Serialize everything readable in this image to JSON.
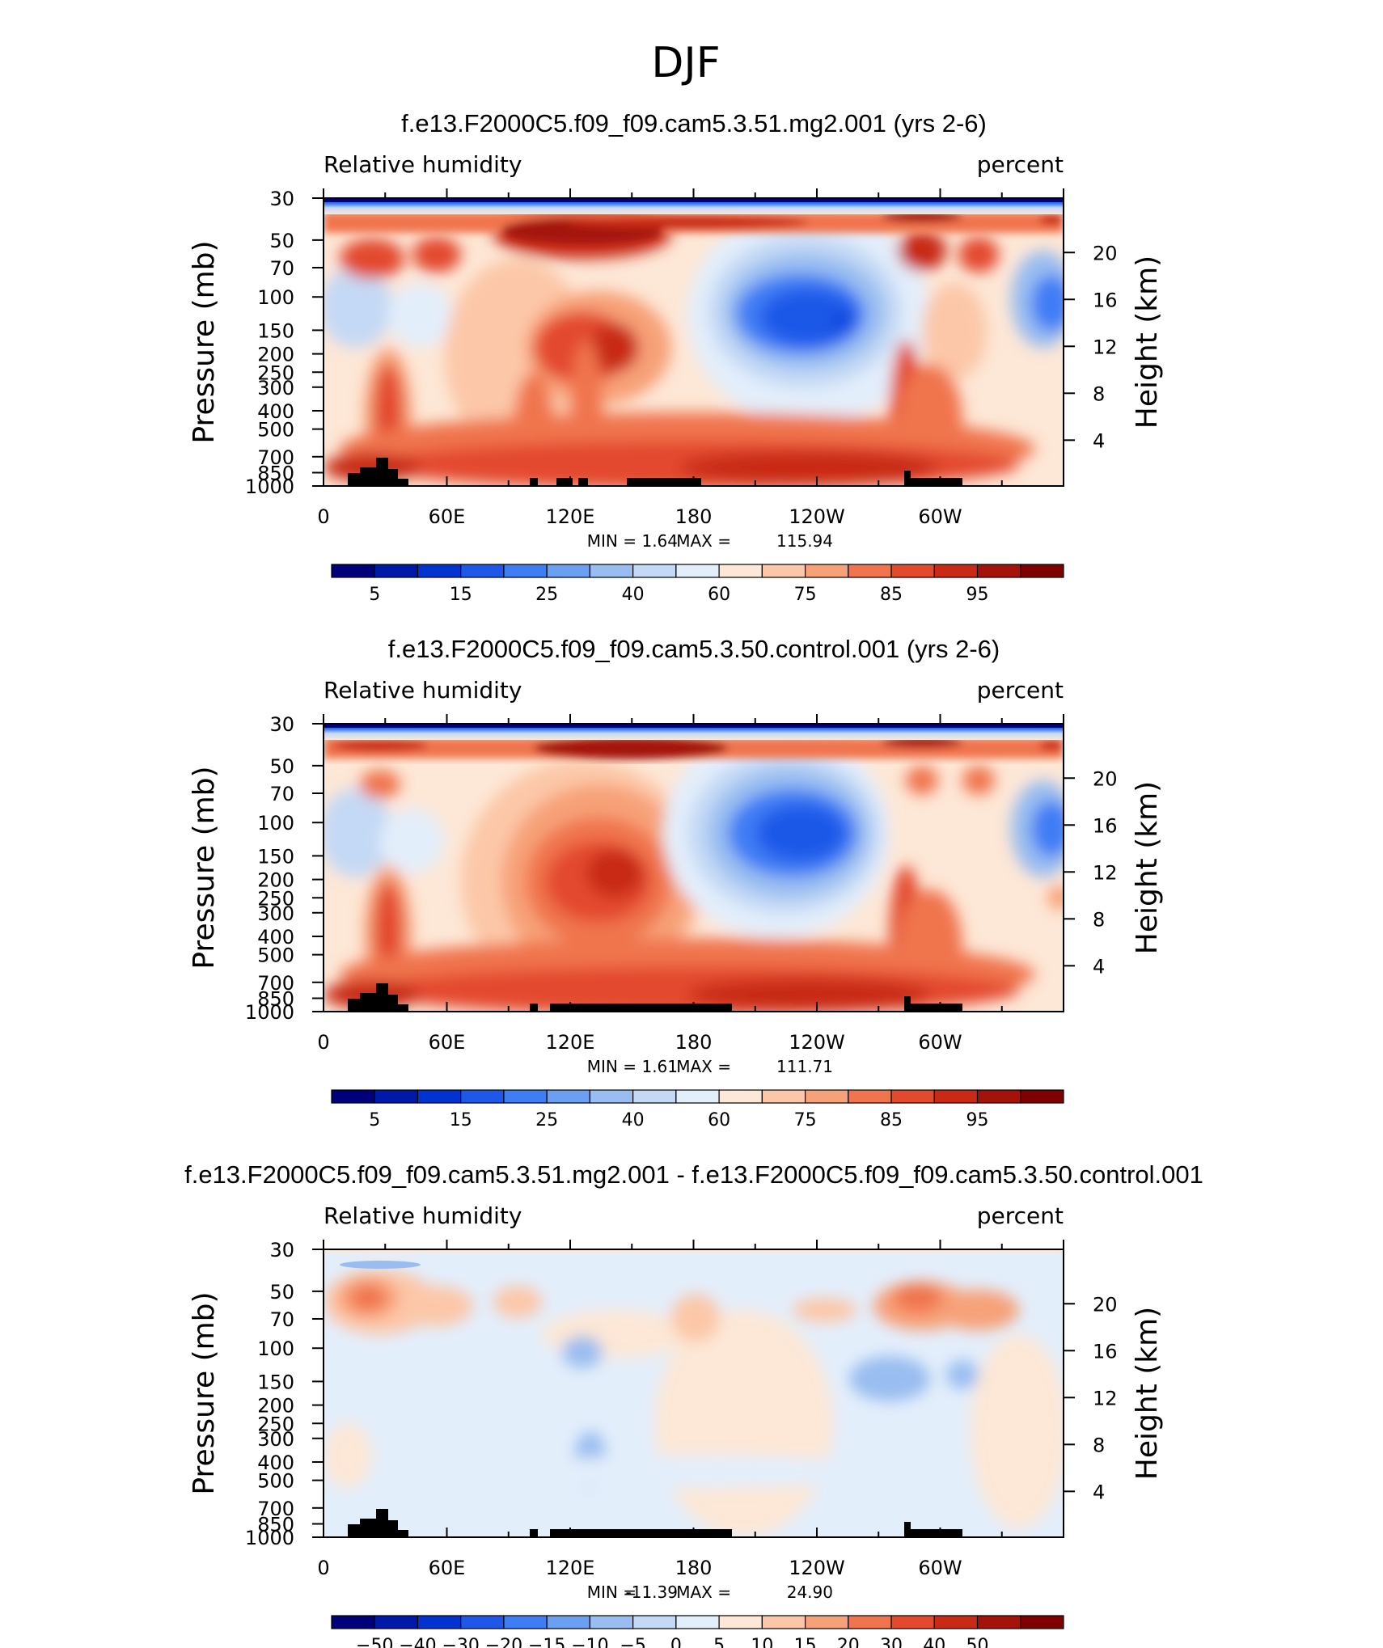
{
  "figure": {
    "title": "DJF"
  },
  "chart_data": [
    {
      "type": "heatmap",
      "title": "f.e13.F2000C5.f09_f09.cam5.3.51.mg2.001 (yrs 2-6)",
      "left_string": "Relative humidity",
      "right_string": "percent",
      "ylabel": "Pressure (mb)",
      "ylabel_right": "Height (km)",
      "x_ticks": [
        "0",
        "60E",
        "120E",
        "180",
        "120W",
        "60W"
      ],
      "y_ticks": [
        "30",
        "50",
        "70",
        "100",
        "150",
        "200",
        "250",
        "300",
        "400",
        "500",
        "700",
        "850",
        "1000"
      ],
      "right_ticks": [
        "20",
        "16",
        "12",
        "8",
        "4"
      ],
      "min_label": "MIN =",
      "min": "1.64",
      "max_label": "MAX =",
      "max": "115.94",
      "colorbar_labels": [
        "5",
        "15",
        "25",
        "40",
        "60",
        "75",
        "85",
        "95"
      ]
    },
    {
      "type": "heatmap",
      "title": "f.e13.F2000C5.f09_f09.cam5.3.50.control.001 (yrs 2-6)",
      "left_string": "Relative humidity",
      "right_string": "percent",
      "ylabel": "Pressure (mb)",
      "ylabel_right": "Height (km)",
      "x_ticks": [
        "0",
        "60E",
        "120E",
        "180",
        "120W",
        "60W"
      ],
      "y_ticks": [
        "30",
        "50",
        "70",
        "100",
        "150",
        "200",
        "250",
        "300",
        "400",
        "500",
        "700",
        "850",
        "1000"
      ],
      "right_ticks": [
        "20",
        "16",
        "12",
        "8",
        "4"
      ],
      "min_label": "MIN =",
      "min": "1.61",
      "max_label": "MAX =",
      "max": "111.71",
      "colorbar_labels": [
        "5",
        "15",
        "25",
        "40",
        "60",
        "75",
        "85",
        "95"
      ]
    },
    {
      "type": "heatmap",
      "title": "f.e13.F2000C5.f09_f09.cam5.3.51.mg2.001 - f.e13.F2000C5.f09_f09.cam5.3.50.control.001",
      "left_string": "Relative humidity",
      "right_string": "percent",
      "ylabel": "Pressure (mb)",
      "ylabel_right": "Height (km)",
      "x_ticks": [
        "0",
        "60E",
        "120E",
        "180",
        "120W",
        "60W"
      ],
      "y_ticks": [
        "30",
        "50",
        "70",
        "100",
        "150",
        "200",
        "250",
        "300",
        "400",
        "500",
        "700",
        "850",
        "1000"
      ],
      "right_ticks": [
        "20",
        "16",
        "12",
        "8",
        "4"
      ],
      "min_label": "MIN =",
      "min": "-11.39",
      "max_label": "MAX =",
      "max": "24.90",
      "colorbar_labels": [
        "−50",
        "−40",
        "−30",
        "−20",
        "−15",
        "−10",
        "−5",
        "0",
        "5",
        "10",
        "15",
        "20",
        "30",
        "40",
        "50"
      ]
    }
  ],
  "colors": {
    "scale": [
      "#00007a",
      "#0019a8",
      "#0033d0",
      "#1f58e8",
      "#3f7df5",
      "#6b9ff2",
      "#99bdf0",
      "#c4d9f5",
      "#e3eefb",
      "#fde7d6",
      "#fcc7a8",
      "#f7a178",
      "#f0744e",
      "#e34a2d",
      "#c82a16",
      "#a4120a",
      "#7e0000"
    ]
  }
}
